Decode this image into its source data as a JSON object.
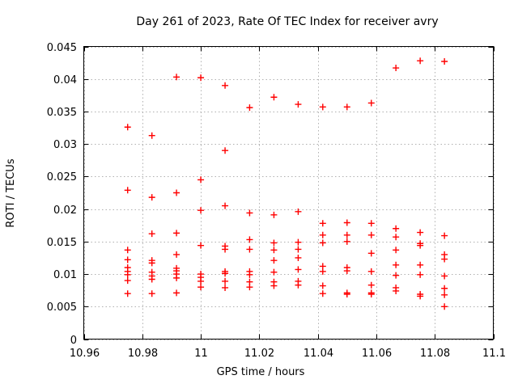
{
  "chart_data": {
    "type": "scatter",
    "title": "Day 261 of 2023, Rate Of TEC Index for receiver avry",
    "xlabel": "GPS time / hours",
    "ylabel": "ROTI / TECUs",
    "xlim": [
      10.96,
      11.1
    ],
    "ylim": [
      0,
      0.045
    ],
    "xticks": [
      10.96,
      10.98,
      11,
      11.02,
      11.04,
      11.06,
      11.08,
      11.1
    ],
    "xtick_labels": [
      "10.96",
      "10.98",
      "11",
      "11.02",
      "11.04",
      "11.06",
      "11.08",
      "11.1"
    ],
    "yticks": [
      0,
      0.005,
      0.01,
      0.015,
      0.02,
      0.025,
      0.03,
      0.035,
      0.04,
      0.045
    ],
    "ytick_labels": [
      "0",
      "0.005",
      "0.01",
      "0.015",
      "0.02",
      "0.025",
      "0.03",
      "0.035",
      "0.04",
      "0.045"
    ],
    "grid": true,
    "legend": null,
    "marker": "plus",
    "colors": {
      "marker": "#ff0000",
      "grid": "#b0b0b0",
      "axis": "#000000",
      "background": "#ffffff",
      "text": "#000000"
    },
    "points": [
      [
        10.975,
        0.0326
      ],
      [
        10.975,
        0.0229
      ],
      [
        10.975,
        0.0137
      ],
      [
        10.975,
        0.0122
      ],
      [
        10.975,
        0.011
      ],
      [
        10.975,
        0.0104
      ],
      [
        10.975,
        0.0099
      ],
      [
        10.975,
        0.009
      ],
      [
        10.975,
        0.007
      ],
      [
        10.9833,
        0.0313
      ],
      [
        10.9833,
        0.0218
      ],
      [
        10.9833,
        0.0162
      ],
      [
        10.9833,
        0.0121
      ],
      [
        10.9833,
        0.0117
      ],
      [
        10.9833,
        0.0103
      ],
      [
        10.9833,
        0.0097
      ],
      [
        10.9833,
        0.0092
      ],
      [
        10.9833,
        0.007
      ],
      [
        10.9917,
        0.0403
      ],
      [
        10.9917,
        0.0225
      ],
      [
        10.9917,
        0.0163
      ],
      [
        10.9917,
        0.013
      ],
      [
        10.9917,
        0.0109
      ],
      [
        10.9917,
        0.0105
      ],
      [
        10.9917,
        0.01
      ],
      [
        10.9917,
        0.0094
      ],
      [
        10.9917,
        0.0071
      ],
      [
        11,
        0.0402
      ],
      [
        11,
        0.0245
      ],
      [
        11,
        0.0198
      ],
      [
        11,
        0.0144
      ],
      [
        11,
        0.01
      ],
      [
        11,
        0.0095
      ],
      [
        11,
        0.0089
      ],
      [
        11,
        0.008
      ],
      [
        11.0083,
        0.039
      ],
      [
        11.0083,
        0.029
      ],
      [
        11.0083,
        0.0205
      ],
      [
        11.0083,
        0.0143
      ],
      [
        11.0083,
        0.0138
      ],
      [
        11.0083,
        0.0104
      ],
      [
        11.0083,
        0.0101
      ],
      [
        11.0083,
        0.0089
      ],
      [
        11.0083,
        0.0079
      ],
      [
        11.0167,
        0.0356
      ],
      [
        11.0167,
        0.0194
      ],
      [
        11.0167,
        0.0153
      ],
      [
        11.0167,
        0.0138
      ],
      [
        11.0167,
        0.0104
      ],
      [
        11.0167,
        0.0099
      ],
      [
        11.0167,
        0.0088
      ],
      [
        11.0167,
        0.008
      ],
      [
        11.025,
        0.0372
      ],
      [
        11.025,
        0.0191
      ],
      [
        11.025,
        0.0148
      ],
      [
        11.025,
        0.0137
      ],
      [
        11.025,
        0.0121
      ],
      [
        11.025,
        0.0103
      ],
      [
        11.025,
        0.0088
      ],
      [
        11.025,
        0.0082
      ],
      [
        11.0333,
        0.0361
      ],
      [
        11.0333,
        0.0196
      ],
      [
        11.0333,
        0.0149
      ],
      [
        11.0333,
        0.0138
      ],
      [
        11.0333,
        0.0125
      ],
      [
        11.0333,
        0.0107
      ],
      [
        11.0333,
        0.0089
      ],
      [
        11.0333,
        0.0083
      ],
      [
        11.0417,
        0.0357
      ],
      [
        11.0417,
        0.0178
      ],
      [
        11.0417,
        0.016
      ],
      [
        11.0417,
        0.0148
      ],
      [
        11.0417,
        0.0112
      ],
      [
        11.0417,
        0.0104
      ],
      [
        11.0417,
        0.0082
      ],
      [
        11.0417,
        0.007
      ],
      [
        11.05,
        0.0357
      ],
      [
        11.05,
        0.0179
      ],
      [
        11.05,
        0.016
      ],
      [
        11.05,
        0.015
      ],
      [
        11.05,
        0.011
      ],
      [
        11.05,
        0.0105
      ],
      [
        11.05,
        0.0071
      ],
      [
        11.05,
        0.0069
      ],
      [
        11.0583,
        0.0363
      ],
      [
        11.0583,
        0.0178
      ],
      [
        11.0583,
        0.016
      ],
      [
        11.0583,
        0.0132
      ],
      [
        11.0583,
        0.0104
      ],
      [
        11.0583,
        0.0083
      ],
      [
        11.0583,
        0.0071
      ],
      [
        11.0583,
        0.0069
      ],
      [
        11.0667,
        0.0417
      ],
      [
        11.0667,
        0.017
      ],
      [
        11.0667,
        0.0157
      ],
      [
        11.0667,
        0.0137
      ],
      [
        11.0667,
        0.0114
      ],
      [
        11.0667,
        0.0098
      ],
      [
        11.0667,
        0.0079
      ],
      [
        11.0667,
        0.0074
      ],
      [
        11.075,
        0.0428
      ],
      [
        11.075,
        0.0164
      ],
      [
        11.075,
        0.0147
      ],
      [
        11.075,
        0.0144
      ],
      [
        11.075,
        0.0114
      ],
      [
        11.075,
        0.0099
      ],
      [
        11.075,
        0.0069
      ],
      [
        11.075,
        0.0066
      ],
      [
        11.0833,
        0.0427
      ],
      [
        11.0833,
        0.0159
      ],
      [
        11.0833,
        0.013
      ],
      [
        11.0833,
        0.0123
      ],
      [
        11.0833,
        0.0097
      ],
      [
        11.0833,
        0.0078
      ],
      [
        11.0833,
        0.0068
      ],
      [
        11.0833,
        0.005
      ]
    ]
  }
}
